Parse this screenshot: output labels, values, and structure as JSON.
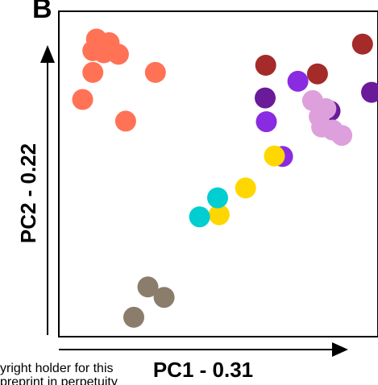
{
  "chart_data": {
    "type": "scatter",
    "panel_label": "B",
    "xlabel": "PC1 - 0.31",
    "ylabel": "PC2 - 0.22",
    "xlim": [
      0,
      100
    ],
    "ylim": [
      0,
      100
    ],
    "grid": false,
    "legend": "none",
    "series": [
      {
        "color": "#FF7256",
        "points": [
          [
            8.5,
            96.6
          ],
          [
            12.7,
            95.4
          ],
          [
            7.3,
            92.7
          ],
          [
            10.9,
            92.0
          ],
          [
            15.8,
            91.5
          ],
          [
            7.3,
            85.4
          ],
          [
            28.1,
            85.4
          ],
          [
            3.9,
            76.3
          ],
          [
            18.2,
            69.0
          ]
        ]
      },
      {
        "color": "#A52A2A",
        "points": [
          [
            64.8,
            87.8
          ],
          [
            82.0,
            84.9
          ],
          [
            97.0,
            94.9
          ]
        ]
      },
      {
        "color": "#6A1B9A",
        "points": [
          [
            64.6,
            76.8
          ],
          [
            86.2,
            72.4
          ],
          [
            100.0,
            78.7
          ]
        ]
      },
      {
        "color": "#8A2BE2",
        "points": [
          [
            75.5,
            82.4
          ],
          [
            65.0,
            68.8
          ],
          [
            70.4,
            57.1
          ]
        ]
      },
      {
        "color": "#DDA0DD",
        "points": [
          [
            80.4,
            75.9
          ],
          [
            84.8,
            73.2
          ],
          [
            82.6,
            70.5
          ],
          [
            83.4,
            67.0
          ],
          [
            87.1,
            66.0
          ],
          [
            90.1,
            64.2
          ]
        ]
      },
      {
        "color": "#FFD700",
        "points": [
          [
            67.7,
            57.3
          ],
          [
            58.1,
            46.5
          ],
          [
            49.3,
            37.5
          ]
        ]
      },
      {
        "color": "#00CED1",
        "points": [
          [
            48.8,
            43.2
          ],
          [
            42.8,
            36.8
          ]
        ]
      },
      {
        "color": "#8B7D6B",
        "points": [
          [
            25.6,
            13.2
          ],
          [
            31.0,
            9.7
          ],
          [
            20.9,
            3.0
          ]
        ]
      }
    ]
  },
  "overflow_text": [
    "yright holder for this",
    "preprint in perpetuity"
  ]
}
